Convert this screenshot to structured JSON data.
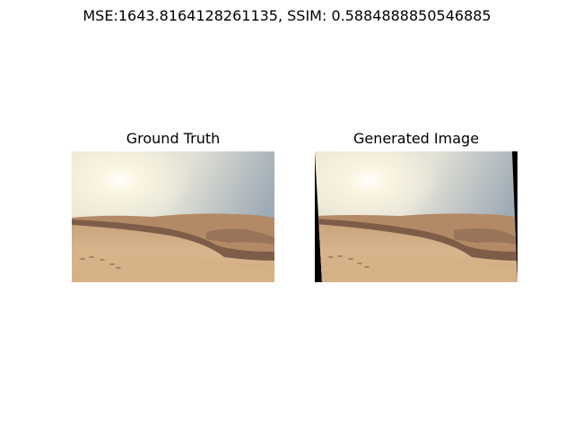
{
  "figure": {
    "suptitle": "MSE:1643.8164128261135, SSIM: 0.5884888850546885"
  },
  "panels": [
    {
      "title": "Ground Truth"
    },
    {
      "title": "Generated Image"
    }
  ],
  "colors": {
    "sky_top": "#9aa7b3",
    "sky_glow": "#fbf6e2",
    "dune_shadow": "#7a5a45",
    "sand_light": "#d9b88f",
    "sand_mid": "#c49a72",
    "border_black": "#000000"
  }
}
